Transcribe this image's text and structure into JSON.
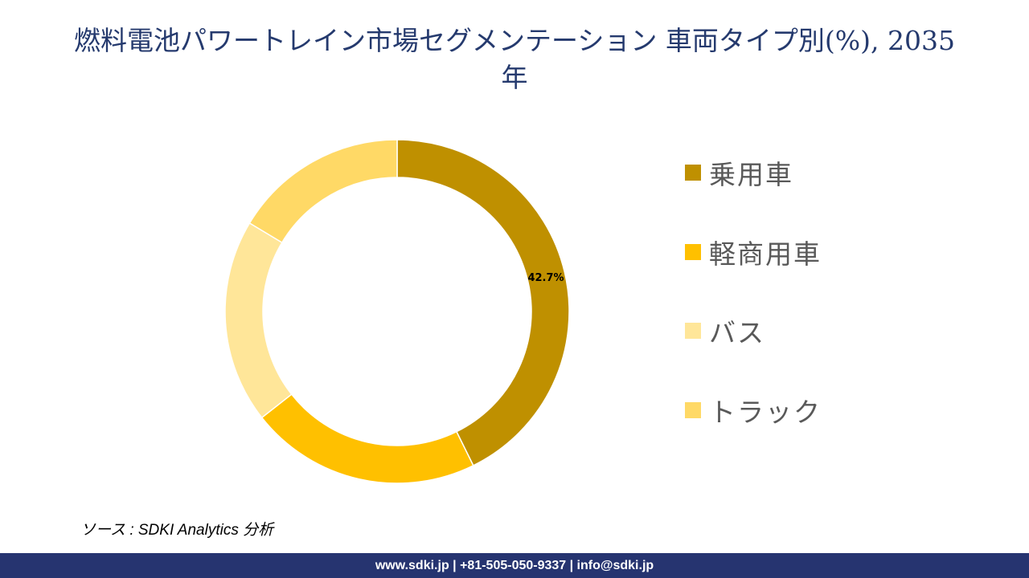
{
  "title": "燃料電池パワートレイン市場セグメンテーション 車両タイプ別(%), 2035年",
  "title_line1": "燃料電池パワートレイン市場セグメンテーション 車両タイプ別(%), 2035",
  "title_line2": "年",
  "chart_data": {
    "type": "pie",
    "subtype": "donut",
    "title": "燃料電池パワートレイン市場セグメンテーション 車両タイプ別(%), 2035年",
    "categories": [
      "乗用車",
      "軽商用車",
      "バス",
      "トラック"
    ],
    "values": [
      42.7,
      21.7,
      19.2,
      16.4
    ],
    "colors": [
      "#bf9000",
      "#ffc000",
      "#ffe699",
      "#ffd966"
    ],
    "data_labels": [
      "42.7%",
      "",
      "",
      ""
    ],
    "legend_position": "right",
    "start_angle": 0,
    "direction": "clockwise"
  },
  "legend": {
    "items": [
      {
        "label": "乗用車",
        "color": "#bf9000"
      },
      {
        "label": "軽商用車",
        "color": "#ffc000"
      },
      {
        "label": "バス",
        "color": "#ffe699"
      },
      {
        "label": "トラック",
        "color": "#ffd966"
      }
    ]
  },
  "source": "ソース : SDKI Analytics 分析",
  "footer": {
    "text": "www.sdki.jp | +81-505-050-9337 | info@sdki.jp"
  }
}
